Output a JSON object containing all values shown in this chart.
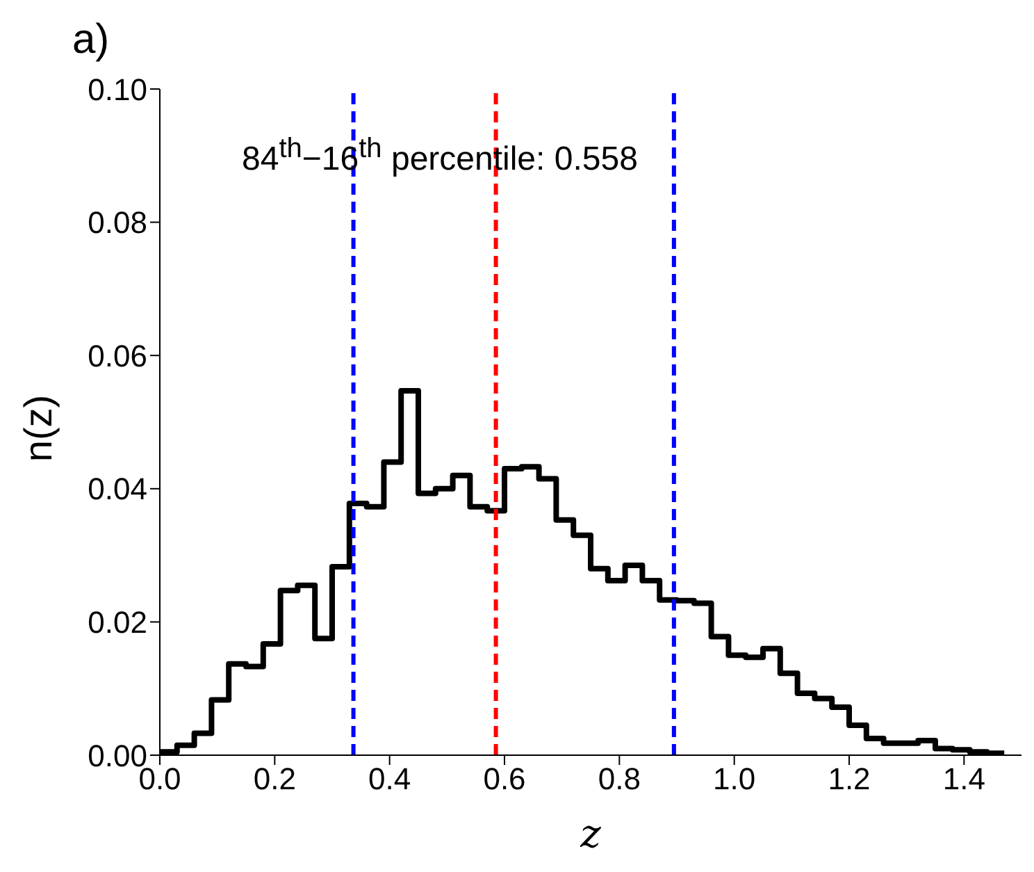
{
  "chart_data": {
    "type": "histogram",
    "title": "a)",
    "xlabel": "z",
    "ylabel": "n(z)",
    "bins": [
      0,
      0.03,
      0.06,
      0.09,
      0.12,
      0.15,
      0.18,
      0.21,
      0.24,
      0.27,
      0.3,
      0.33,
      0.36,
      0.39,
      0.42,
      0.45,
      0.48,
      0.51,
      0.54,
      0.57,
      0.6,
      0.63,
      0.66,
      0.69,
      0.72,
      0.75,
      0.78,
      0.81,
      0.84,
      0.87,
      0.9,
      0.93,
      0.96,
      0.99,
      1.02,
      1.05,
      1.08,
      1.11,
      1.14,
      1.17,
      1.2,
      1.23,
      1.26,
      1.29,
      1.32,
      1.35,
      1.38,
      1.41,
      1.44,
      1.47
    ],
    "values": [
      0.0005,
      0.0015,
      0.0033,
      0.0083,
      0.0137,
      0.0133,
      0.0167,
      0.0247,
      0.0255,
      0.0175,
      0.0283,
      0.0378,
      0.0373,
      0.044,
      0.0547,
      0.0393,
      0.04,
      0.042,
      0.0373,
      0.0367,
      0.043,
      0.0433,
      0.0415,
      0.0353,
      0.033,
      0.028,
      0.0262,
      0.0285,
      0.0262,
      0.0233,
      0.0232,
      0.0228,
      0.0178,
      0.015,
      0.0147,
      0.016,
      0.0123,
      0.0093,
      0.0085,
      0.0072,
      0.0045,
      0.0025,
      0.0018,
      0.0018,
      0.0022,
      0.001,
      0.0008,
      0.0005,
      0.0003
    ],
    "color": "#000000",
    "xlim": [
      0,
      1.5
    ],
    "xticks": [
      {
        "value": 0,
        "label": "0.0"
      },
      {
        "value": 0.2,
        "label": "0.2"
      },
      {
        "value": 0.4,
        "label": "0.4"
      },
      {
        "value": 0.6,
        "label": "0.6"
      },
      {
        "value": 0.8,
        "label": "0.8"
      },
      {
        "value": 1,
        "label": "1.0"
      },
      {
        "value": 1.2,
        "label": "1.2"
      },
      {
        "value": 1.4,
        "label": "1.4"
      }
    ],
    "ylim": [
      0,
      0.1
    ],
    "yticks": [
      {
        "value": 0,
        "label": "0.00"
      },
      {
        "value": 0.02,
        "label": "0.02"
      },
      {
        "value": 0.04,
        "label": "0.04"
      },
      {
        "value": 0.06,
        "label": "0.06"
      },
      {
        "value": 0.08,
        "label": "0.08"
      },
      {
        "value": 0.1,
        "label": "0.10"
      }
    ],
    "ref_lines": [
      {
        "axis": "x",
        "value": 0.337,
        "color": "#0000ff",
        "line_style": "dashed"
      },
      {
        "axis": "x",
        "value": 0.585,
        "color": "#ff0000",
        "line_style": "dashed"
      },
      {
        "axis": "x",
        "value": 0.895,
        "color": "#0000ff",
        "line_style": "dashed"
      }
    ],
    "annotations": [
      "84$^{th}$−16$^{th}$ percentile: 0.558"
    ],
    "grid": false,
    "legend": false
  }
}
